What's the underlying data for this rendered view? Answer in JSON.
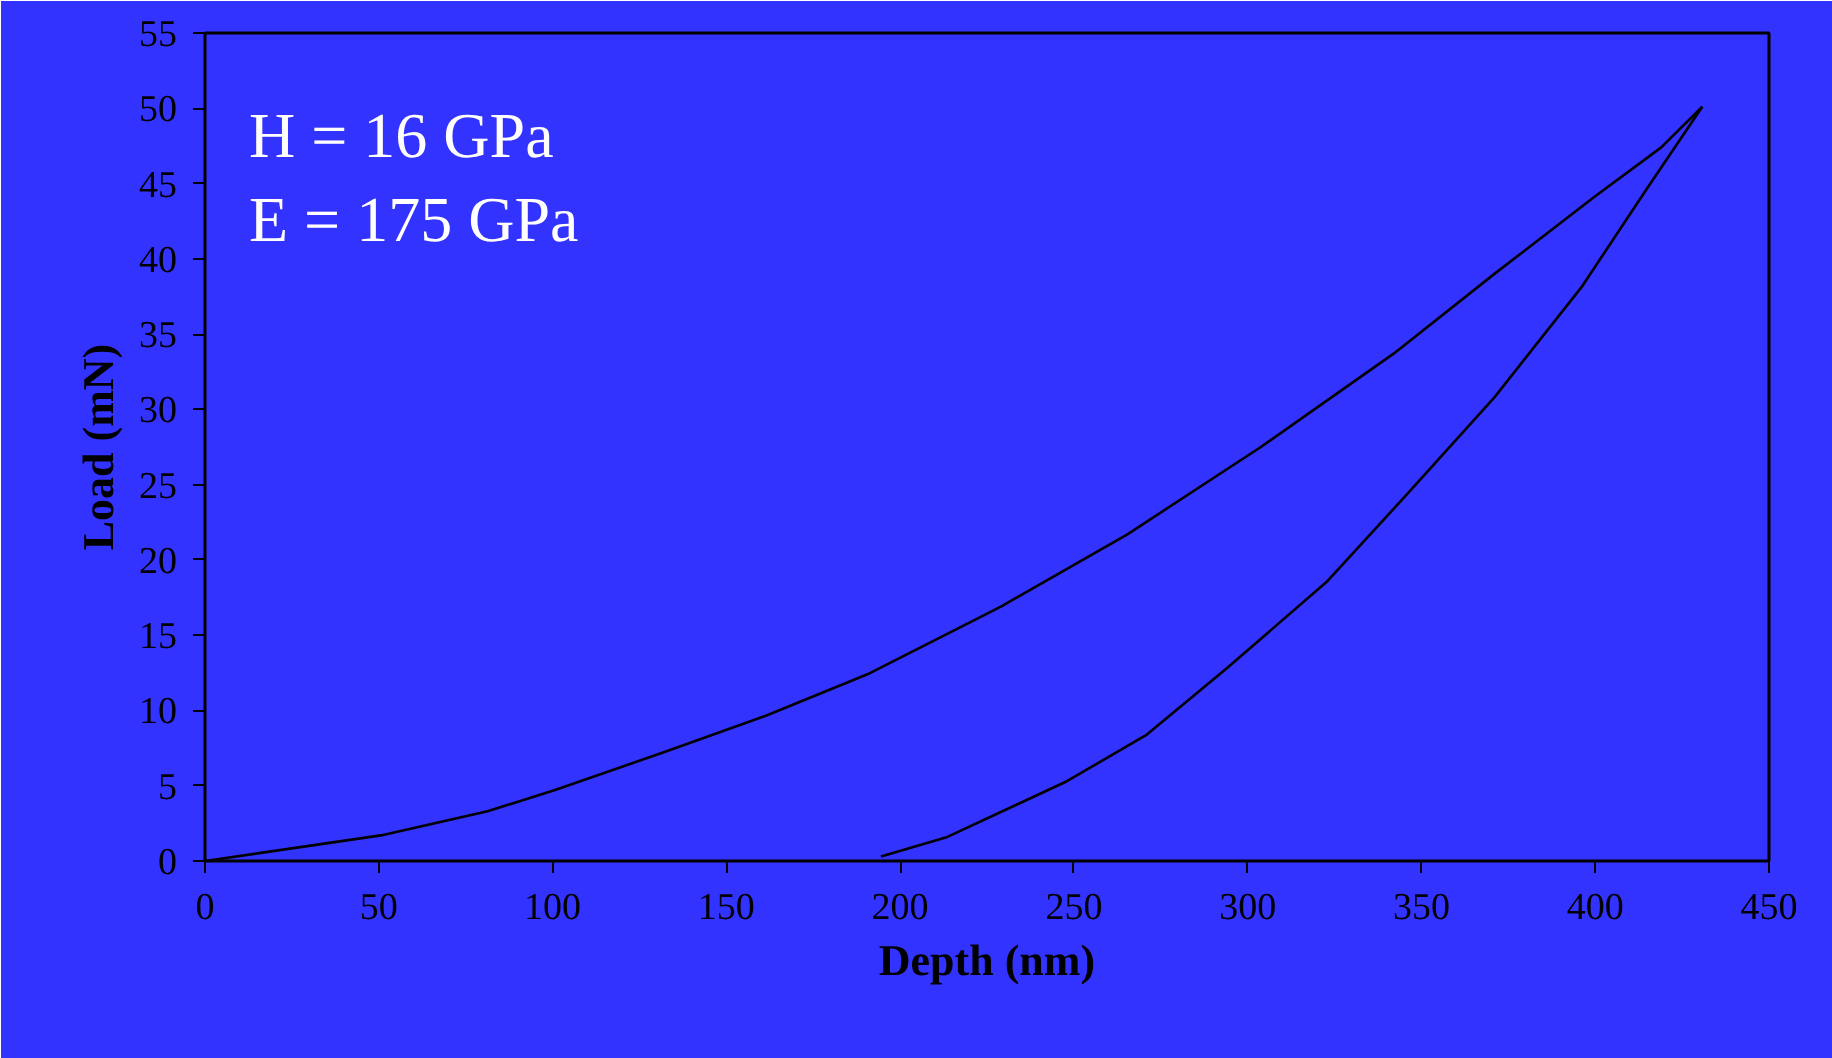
{
  "chart_data": {
    "type": "line",
    "xlabel": "Depth (nm)",
    "ylabel": "Load (mN)",
    "xlim": [
      0,
      450
    ],
    "xticks": [
      0,
      50,
      100,
      150,
      200,
      250,
      300,
      350,
      400,
      450
    ],
    "ylim": [
      0,
      55
    ],
    "yticks": [
      0,
      5,
      10,
      15,
      20,
      25,
      30,
      35,
      40,
      45,
      50,
      55
    ],
    "grid": false,
    "marker": "none",
    "line_style": "solid",
    "annotations": [
      "H = 16 GPa",
      "E = 175 GPa"
    ],
    "series": [
      {
        "color": "#000000",
        "x": [
          0,
          50.6,
          81.3,
          100.5,
          133,
          161.9,
          190.6,
          229,
          265.4,
          303.8,
          342,
          371,
          399.7,
          419,
          430.8
        ],
        "values": [
          0,
          1.7,
          3.3,
          4.7,
          7.3,
          9.7,
          12.4,
          16.9,
          21.7,
          27.5,
          33.7,
          39.0,
          44.1,
          47.4,
          50.1
        ]
      },
      {
        "color": "#000000",
        "x": [
          430.8,
          415,
          396,
          371,
          346,
          323,
          294,
          271,
          248,
          213.6,
          194.5
        ],
        "values": [
          50.1,
          44.7,
          38.1,
          30.8,
          24.4,
          18.6,
          12.8,
          8.4,
          5.3,
          1.6,
          0.3
        ]
      }
    ]
  }
}
